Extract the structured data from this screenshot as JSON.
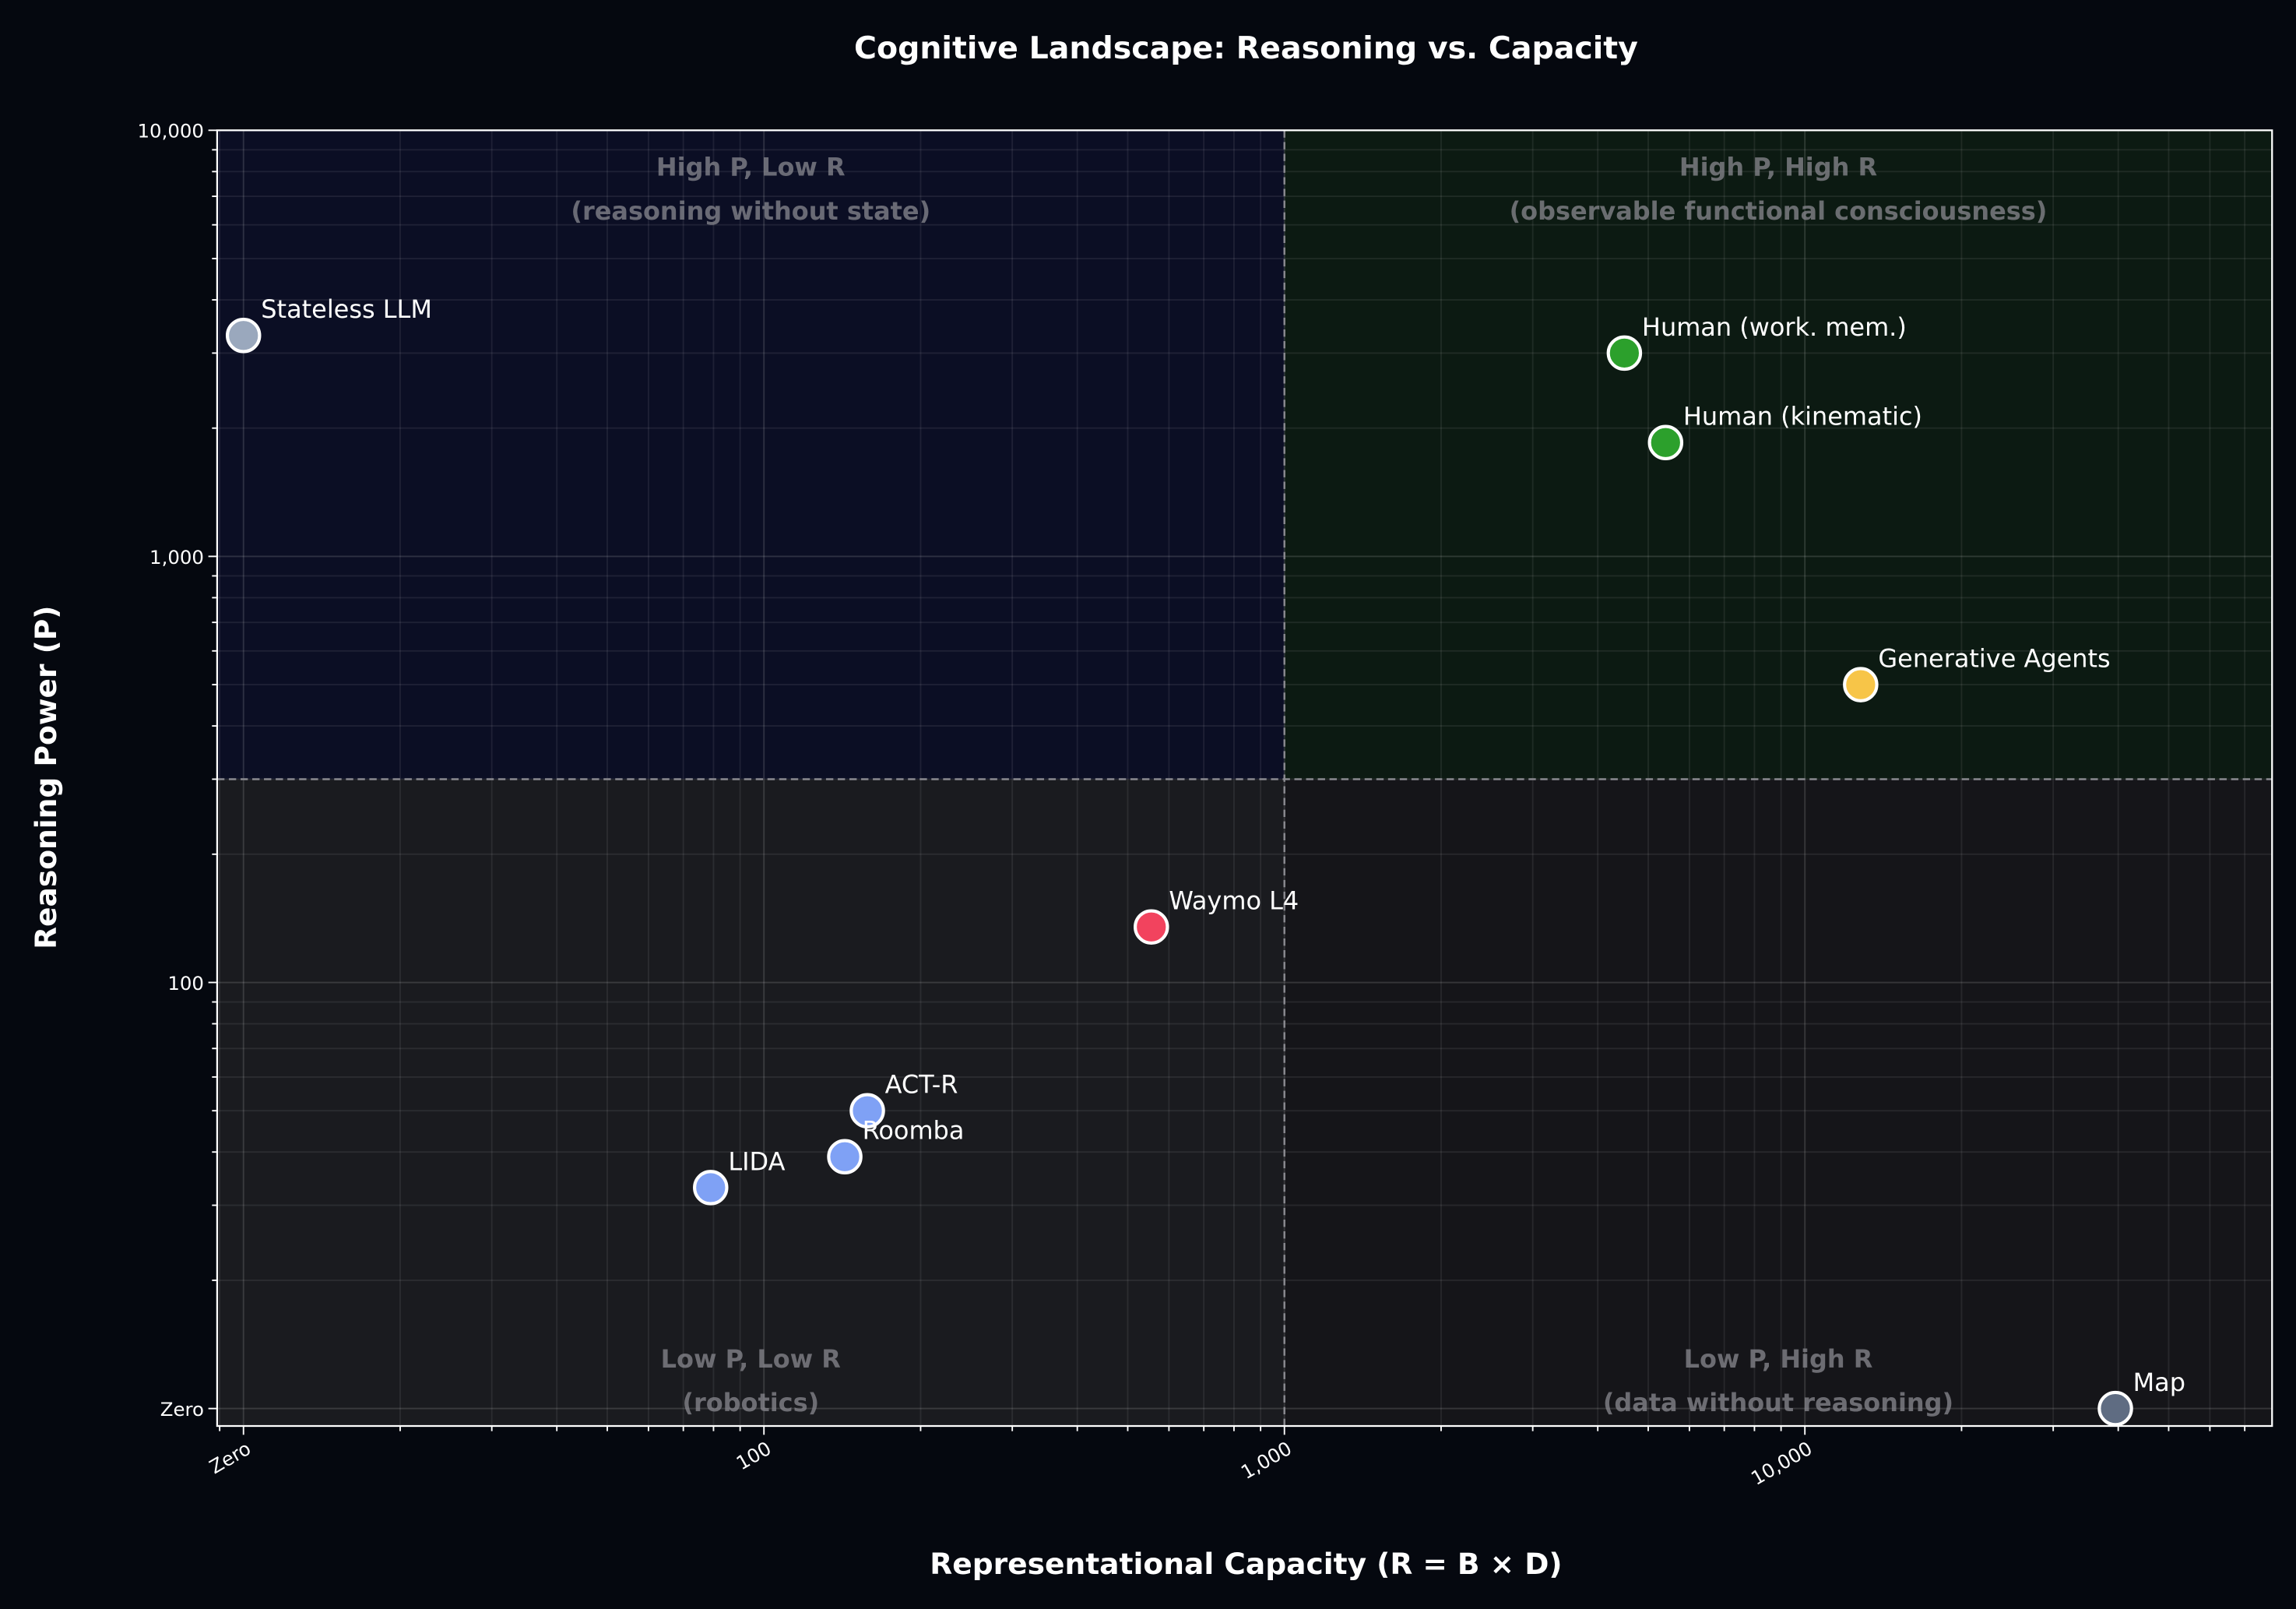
{
  "chart_data": {
    "type": "scatter",
    "title": "Cognitive Landscape: Reasoning vs. Capacity",
    "xlabel": "Representational Capacity (R = B × D)",
    "ylabel": "Reasoning Power (P)",
    "xscale": "log",
    "yscale": "log",
    "xlim": [
      8.9,
      79000
    ],
    "ylim": [
      9.1,
      10000
    ],
    "grid": true,
    "x_ticks": [
      {
        "value": 10,
        "label": "Zero"
      },
      {
        "value": 100,
        "label": "100"
      },
      {
        "value": 1000,
        "label": "1,000"
      },
      {
        "value": 10000,
        "label": "10,000"
      }
    ],
    "y_ticks": [
      {
        "value": 10,
        "label": "Zero"
      },
      {
        "value": 100,
        "label": "100"
      },
      {
        "value": 1000,
        "label": "1,000"
      },
      {
        "value": 10000,
        "label": "10,000"
      }
    ],
    "thresholds": {
      "x": 1000,
      "y": 300
    },
    "quadrants": [
      {
        "id": "high-p-low-r",
        "title": "High P, Low R",
        "subtitle": "(reasoning without state)",
        "color": "#0b0e24"
      },
      {
        "id": "high-p-high-r",
        "title": "High P, High R",
        "subtitle": "(observable functional consciousness)",
        "color": "#0c1a12"
      },
      {
        "id": "low-p-low-r",
        "title": "Low P, Low R",
        "subtitle": "(robotics)",
        "color": "#1a1b1f"
      },
      {
        "id": "low-p-high-r",
        "title": "Low P, High R",
        "subtitle": "(data without reasoning)",
        "color": "#151519"
      }
    ],
    "points": [
      {
        "label": "Stateless LLM",
        "x": 10,
        "y": 3300,
        "color": "#9aa8bd"
      },
      {
        "label": "Human (work. mem.)",
        "x": 4500,
        "y": 3000,
        "color": "#2ca02c"
      },
      {
        "label": "Human (kinematic)",
        "x": 5400,
        "y": 1850,
        "color": "#2ca02c"
      },
      {
        "label": "Generative Agents",
        "x": 12800,
        "y": 500,
        "color": "#f7c548"
      },
      {
        "label": "Waymo L4",
        "x": 555,
        "y": 135,
        "color": "#f2435e"
      },
      {
        "label": "ACT-R",
        "x": 158,
        "y": 50,
        "color": "#7fa1f5"
      },
      {
        "label": "Roomba",
        "x": 143,
        "y": 39,
        "color": "#7fa1f5"
      },
      {
        "label": "LIDA",
        "x": 79,
        "y": 33,
        "color": "#7fa1f5"
      },
      {
        "label": "Map",
        "x": 39500,
        "y": 10,
        "color": "#5f6c82"
      }
    ]
  }
}
